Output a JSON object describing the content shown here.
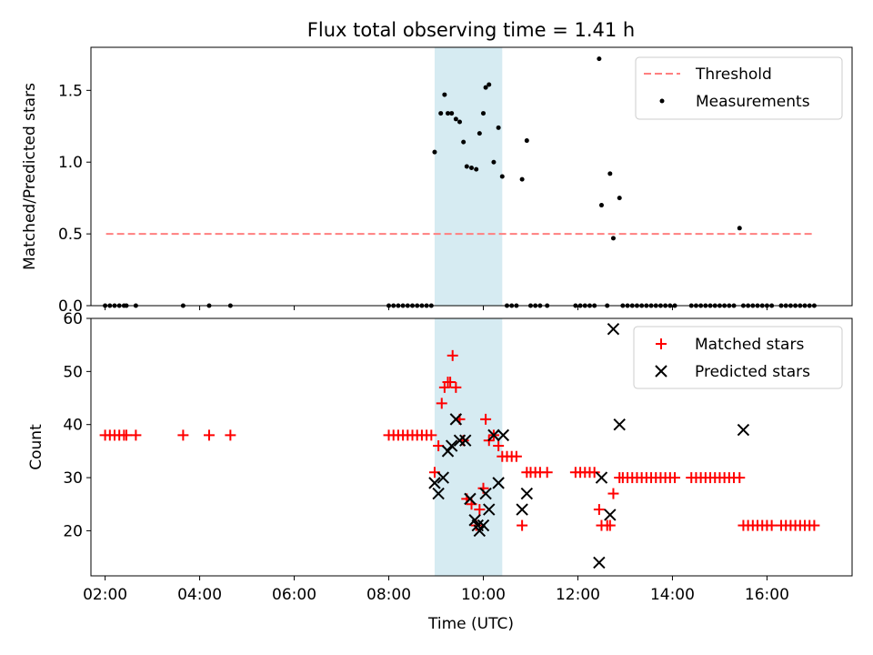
{
  "chart_data": [
    {
      "type": "scatter",
      "title": "Flux total observing time = 1.41 h",
      "xlabel": "",
      "ylabel": "Matched/Predicted stars",
      "xlim": [
        1.7,
        17.8
      ],
      "ylim": [
        0,
        1.8
      ],
      "yticks": [
        0.0,
        0.5,
        1.0,
        1.5
      ],
      "ytick_labels": [
        "0.0",
        "0.5",
        "1.0",
        "1.5"
      ],
      "highlight_span": [
        8.97,
        10.4
      ],
      "series": [
        {
          "name": "Threshold",
          "kind": "dashed-line",
          "color": "#ff7f7f",
          "x": [
            2.02,
            17.0
          ],
          "y": [
            0.5,
            0.5
          ]
        },
        {
          "name": "Measurements",
          "kind": "points",
          "color": "#000000",
          "x": [
            2.0,
            2.1,
            2.2,
            2.3,
            2.4,
            2.45,
            2.65,
            3.65,
            4.2,
            4.65,
            8.0,
            8.1,
            8.2,
            8.3,
            8.4,
            8.5,
            8.6,
            8.7,
            8.8,
            8.9,
            8.97,
            9.1,
            9.18,
            9.25,
            9.33,
            9.42,
            9.5,
            9.58,
            9.65,
            9.75,
            9.85,
            9.92,
            10.0,
            10.05,
            10.12,
            10.22,
            10.32,
            10.4,
            10.5,
            10.6,
            10.7,
            10.82,
            10.92,
            11.0,
            11.1,
            11.2,
            11.35,
            11.95,
            12.05,
            12.15,
            12.25,
            12.35,
            12.45,
            12.5,
            12.62,
            12.68,
            12.75,
            12.88,
            12.95,
            13.05,
            13.15,
            13.25,
            13.35,
            13.45,
            13.55,
            13.65,
            13.75,
            13.85,
            13.95,
            14.05,
            14.4,
            14.5,
            14.6,
            14.7,
            14.8,
            14.9,
            15.0,
            15.1,
            15.2,
            15.3,
            15.42,
            15.5,
            15.6,
            15.7,
            15.8,
            15.9,
            16.0,
            16.1,
            16.3,
            16.4,
            16.5,
            16.6,
            16.7,
            16.8,
            16.9,
            17.0
          ],
          "y": [
            0,
            0,
            0,
            0,
            0,
            0,
            0,
            0,
            0,
            0,
            0,
            0,
            0,
            0,
            0,
            0,
            0,
            0,
            0,
            0,
            1.07,
            1.34,
            1.47,
            1.34,
            1.34,
            1.3,
            1.28,
            1.14,
            0.97,
            0.96,
            0.95,
            1.2,
            1.34,
            1.52,
            1.54,
            1.0,
            1.24,
            0.9,
            0,
            0,
            0,
            0.88,
            1.15,
            0,
            0,
            0,
            0,
            0,
            0,
            0,
            0,
            0,
            1.72,
            0.7,
            0,
            0.92,
            0.47,
            0.75,
            0,
            0,
            0,
            0,
            0,
            0,
            0,
            0,
            0,
            0,
            0,
            0,
            0,
            0,
            0,
            0,
            0,
            0,
            0,
            0,
            0,
            0,
            0.54,
            0,
            0,
            0,
            0,
            0,
            0,
            0,
            0,
            0,
            0,
            0,
            0,
            0,
            0,
            0
          ]
        }
      ],
      "legend": [
        "Threshold",
        "Measurements"
      ],
      "legend_position": "top-right"
    },
    {
      "type": "scatter",
      "title": "",
      "xlabel": "Time (UTC)",
      "ylabel": "Count",
      "xlim": [
        1.7,
        17.8
      ],
      "ylim": [
        11.5,
        60
      ],
      "xticks": [
        2,
        4,
        6,
        8,
        10,
        12,
        14,
        16
      ],
      "xtick_labels": [
        "02:00",
        "04:00",
        "06:00",
        "08:00",
        "10:00",
        "12:00",
        "14:00",
        "16:00"
      ],
      "yticks": [
        20,
        30,
        40,
        50,
        60
      ],
      "ytick_labels": [
        "20",
        "30",
        "40",
        "50",
        "60"
      ],
      "highlight_span": [
        8.97,
        10.4
      ],
      "series": [
        {
          "name": "Matched stars",
          "marker": "plus",
          "color": "#ff0000",
          "x": [
            2.0,
            2.1,
            2.2,
            2.3,
            2.4,
            2.45,
            2.65,
            3.65,
            4.2,
            4.65,
            8.0,
            8.1,
            8.2,
            8.3,
            8.4,
            8.5,
            8.6,
            8.7,
            8.8,
            8.9,
            8.97,
            9.05,
            9.12,
            9.18,
            9.25,
            9.3,
            9.35,
            9.42,
            9.5,
            9.58,
            9.65,
            9.75,
            9.85,
            9.92,
            10.0,
            10.05,
            10.12,
            10.22,
            10.32,
            10.4,
            10.5,
            10.6,
            10.7,
            10.82,
            10.92,
            11.0,
            11.1,
            11.2,
            11.35,
            11.95,
            12.05,
            12.15,
            12.25,
            12.35,
            12.45,
            12.5,
            12.62,
            12.68,
            12.75,
            12.88,
            12.95,
            13.05,
            13.15,
            13.25,
            13.35,
            13.45,
            13.55,
            13.65,
            13.75,
            13.85,
            13.95,
            14.05,
            14.4,
            14.5,
            14.6,
            14.7,
            14.8,
            14.9,
            15.0,
            15.1,
            15.2,
            15.3,
            15.42,
            15.5,
            15.6,
            15.7,
            15.8,
            15.9,
            16.0,
            16.1,
            16.3,
            16.4,
            16.5,
            16.6,
            16.7,
            16.8,
            16.9,
            17.0
          ],
          "y": [
            38,
            38,
            38,
            38,
            38,
            38,
            38,
            38,
            38,
            38,
            38,
            38,
            38,
            38,
            38,
            38,
            38,
            38,
            38,
            38,
            31,
            36,
            44,
            47,
            48,
            48,
            53,
            47,
            41,
            37,
            26,
            25,
            21,
            24,
            28,
            41,
            37,
            38,
            36,
            34,
            34,
            34,
            34,
            21,
            31,
            31,
            31,
            31,
            31,
            31,
            31,
            31,
            31,
            31,
            24,
            21,
            21,
            21,
            27,
            30,
            30,
            30,
            30,
            30,
            30,
            30,
            30,
            30,
            30,
            30,
            30,
            30,
            30,
            30,
            30,
            30,
            30,
            30,
            30,
            30,
            30,
            30,
            30,
            21,
            21,
            21,
            21,
            21,
            21,
            21,
            21,
            21,
            21,
            21,
            21,
            21,
            21,
            21
          ]
        },
        {
          "name": "Predicted stars",
          "marker": "x",
          "color": "#000000",
          "x": [
            8.97,
            9.05,
            9.15,
            9.25,
            9.33,
            9.42,
            9.5,
            9.62,
            9.72,
            9.82,
            9.88,
            9.92,
            10.0,
            10.05,
            10.12,
            10.22,
            10.32,
            10.42,
            10.82,
            10.92,
            12.45,
            12.5,
            12.68,
            12.75,
            12.88,
            15.5
          ],
          "y": [
            29,
            27,
            30,
            35,
            36,
            41,
            37,
            37,
            26,
            22,
            21,
            20,
            21,
            27,
            24,
            38,
            29,
            38,
            24,
            27,
            14,
            30,
            23,
            58,
            40,
            39
          ]
        }
      ],
      "legend": [
        "Matched stars",
        "Predicted stars"
      ],
      "legend_position": "top-right"
    }
  ]
}
